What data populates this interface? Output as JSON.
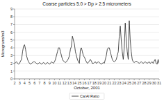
{
  "chart_data": {
    "type": "line",
    "title": "Coarse particles 5.0 > Dp > 2.5 micrometers",
    "x_label": "October, 2001",
    "y_label": "Micrograms/m3",
    "x": [
      2.0,
      2.2,
      2.4,
      2.6,
      2.8,
      3.0,
      3.2,
      3.4,
      3.6,
      3.8,
      4.0,
      4.2,
      4.4,
      4.6,
      4.8,
      5.0,
      5.2,
      5.4,
      5.6,
      5.8,
      6.0,
      6.2,
      6.4,
      6.6,
      6.8,
      7.0,
      7.2,
      7.4,
      7.6,
      7.8,
      8.0,
      8.2,
      8.4,
      8.6,
      8.8,
      9.0,
      9.2,
      9.4,
      9.6,
      9.8,
      10.0,
      10.2,
      10.4,
      10.6,
      10.8,
      11.0,
      11.2,
      11.4,
      11.6,
      11.8,
      12.0,
      12.2,
      12.4,
      12.6,
      12.8,
      13.0,
      13.2,
      13.4,
      13.6,
      13.8,
      14.0,
      14.2,
      14.4,
      14.6,
      14.8,
      15.0,
      15.2,
      15.4,
      15.6,
      15.8,
      16.0,
      16.2,
      16.4,
      16.6,
      16.8,
      17.0,
      17.2,
      17.4,
      17.6,
      17.8,
      18.0,
      18.2,
      18.4,
      18.6,
      18.8,
      19.0,
      19.2,
      19.4,
      19.6,
      19.8,
      20.0,
      20.2,
      20.4,
      20.6,
      20.8,
      21.0,
      21.2,
      21.4,
      21.6,
      21.8,
      22.0,
      22.2,
      22.4,
      22.6,
      22.8,
      23.0,
      23.2,
      23.4,
      23.6,
      23.8,
      24.0,
      24.2,
      24.4,
      24.6,
      24.8,
      25.0,
      25.2,
      25.4,
      25.6,
      25.8,
      26.0,
      26.2,
      26.4,
      26.6,
      26.8,
      27.0,
      27.2,
      27.4,
      27.6,
      27.8,
      28.0,
      28.2,
      28.4,
      28.6,
      28.8,
      29.0,
      29.2,
      29.4,
      29.6,
      29.8,
      30.0,
      30.2,
      30.4,
      30.6,
      30.8,
      31.0
    ],
    "series": [
      {
        "name": "Ca/Al Ratio",
        "color": "#222222",
        "values": [
          2.0,
          2.1,
          2.2,
          2.0,
          1.9,
          2.0,
          2.3,
          2.5,
          3.5,
          4.2,
          4.4,
          3.8,
          3.0,
          2.5,
          2.2,
          2.0,
          1.9,
          2.0,
          2.1,
          2.2,
          2.2,
          2.1,
          2.0,
          1.9,
          2.0,
          2.1,
          2.0,
          1.9,
          2.0,
          2.1,
          2.0,
          1.9,
          2.0,
          2.1,
          2.0,
          1.9,
          2.0,
          2.2,
          2.1,
          2.0,
          2.2,
          2.5,
          3.0,
          3.5,
          4.0,
          4.0,
          3.5,
          3.0,
          2.5,
          2.3,
          2.2,
          2.1,
          2.2,
          2.4,
          2.6,
          3.0,
          3.8,
          4.2,
          5.5,
          5.0,
          4.5,
          3.5,
          3.0,
          2.5,
          2.2,
          2.0,
          3.8,
          4.0,
          3.5,
          3.0,
          2.8,
          2.5,
          2.2,
          2.0,
          2.1,
          2.3,
          2.5,
          2.3,
          2.0,
          2.0,
          2.1,
          2.2,
          2.0,
          2.1,
          2.2,
          2.1,
          2.0,
          1.9,
          2.0,
          2.1,
          2.0,
          2.5,
          3.0,
          3.8,
          4.0,
          4.0,
          3.5,
          3.0,
          2.5,
          2.3,
          2.2,
          2.3,
          2.5,
          3.0,
          3.5,
          5.5,
          6.8,
          5.0,
          3.5,
          2.5,
          4.0,
          7.2,
          5.0,
          3.5,
          2.5,
          7.5,
          5.0,
          3.5,
          2.5,
          2.2,
          2.1,
          2.2,
          2.3,
          2.2,
          2.1,
          2.0,
          2.1,
          2.2,
          2.1,
          2.0,
          2.1,
          2.2,
          2.1,
          2.0,
          2.1,
          2.2,
          2.0,
          2.1,
          2.2,
          2.0,
          2.3,
          2.5,
          2.0,
          1.9,
          2.5,
          2.0
        ]
      }
    ],
    "xlim": [
      2,
      31
    ],
    "xticks": [
      2,
      3,
      4,
      5,
      6,
      7,
      8,
      9,
      10,
      11,
      12,
      13,
      14,
      15,
      16,
      17,
      18,
      19,
      20,
      21,
      22,
      23,
      24,
      25,
      26,
      27,
      28,
      29,
      30,
      31
    ],
    "ylim": [
      0,
      9
    ],
    "yticks": [
      0,
      1,
      2,
      3,
      4,
      5,
      6,
      7,
      8,
      9
    ],
    "grid": "y",
    "legend": "bottom"
  }
}
